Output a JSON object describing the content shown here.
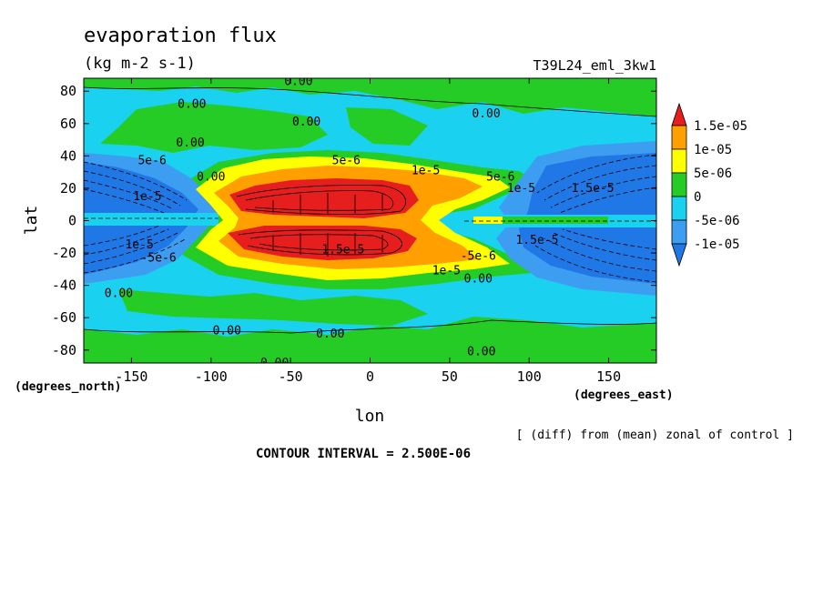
{
  "chart_data": {
    "type": "heatmap",
    "title": "evaporation flux",
    "subtitle": "(kg m-2 s-1)",
    "run_label": "T39L24_eml_3kw1",
    "xlabel": "lon",
    "ylabel": "lat",
    "x_units": "(degrees_east)",
    "y_units": "(degrees_north)",
    "xlim": [
      -180,
      180
    ],
    "ylim": [
      -88,
      88
    ],
    "xticks": [
      -150,
      -100,
      -50,
      0,
      50,
      100,
      150
    ],
    "yticks": [
      -80,
      -60,
      -40,
      -20,
      0,
      20,
      40,
      60,
      80
    ],
    "xtick_labels": [
      "-150",
      "-100",
      "-50",
      "0",
      "50",
      "100",
      "150"
    ],
    "ytick_labels": [
      "-80",
      "-60",
      "-40",
      "-20",
      "0",
      "20",
      "40",
      "60",
      "80"
    ],
    "note": "[ (diff) from (mean) zonal of control ]",
    "contour_interval": "CONTOUR INTERVAL = 2.500E-06",
    "colorbar": {
      "levels": [
        -1e-05,
        -5e-06,
        0,
        5e-06,
        1e-05,
        1.5e-05
      ],
      "labels": [
        "-1e-05",
        "-5e-06",
        "0",
        "5e-06",
        "1e-05",
        "1.5e-05"
      ],
      "colors": [
        "#1f78e6",
        "#3d9df0",
        "#1ad2f0",
        "#25cc25",
        "#ffff00",
        "#ffa000",
        "#e61e1e"
      ]
    },
    "contour_labels": [
      {
        "text": "0.00",
        "lon": -45,
        "lat": 86
      },
      {
        "text": "0.00",
        "lon": -112,
        "lat": 72
      },
      {
        "text": "0.00",
        "lon": -40,
        "lat": 61
      },
      {
        "text": "0.00",
        "lon": 73,
        "lat": 66
      },
      {
        "text": "0.00",
        "lon": -113,
        "lat": 48
      },
      {
        "text": "0.00",
        "lon": -100,
        "lat": 27
      },
      {
        "text": "5e-6",
        "lon": -15,
        "lat": 37
      },
      {
        "text": "5e-6",
        "lon": -137,
        "lat": 37
      },
      {
        "text": "1e-5",
        "lon": 35,
        "lat": 31
      },
      {
        "text": "5e-6",
        "lon": 82,
        "lat": 27
      },
      {
        "text": "1e-5",
        "lon": 95,
        "lat": 20
      },
      {
        "text": "1.5e-5",
        "lon": 140,
        "lat": 20
      },
      {
        "text": "1e-5",
        "lon": -140,
        "lat": 15
      },
      {
        "text": "1e-5",
        "lon": -145,
        "lat": -15
      },
      {
        "text": "-5e-6",
        "lon": -133,
        "lat": -23
      },
      {
        "text": "1.5e-5",
        "lon": -17,
        "lat": -18
      },
      {
        "text": "-5e-6",
        "lon": 68,
        "lat": -22
      },
      {
        "text": "1e-5",
        "lon": 48,
        "lat": -31
      },
      {
        "text": "0.00",
        "lon": 68,
        "lat": -36
      },
      {
        "text": "1.5e-5",
        "lon": 105,
        "lat": -12
      },
      {
        "text": "0.00",
        "lon": -158,
        "lat": -45
      },
      {
        "text": "0.00",
        "lon": -90,
        "lat": -68
      },
      {
        "text": "0.00",
        "lon": -25,
        "lat": -70
      },
      {
        "text": "0.00",
        "lon": 70,
        "lat": -81
      },
      {
        "text": "0.00",
        "lon": -60,
        "lat": -88
      }
    ]
  }
}
